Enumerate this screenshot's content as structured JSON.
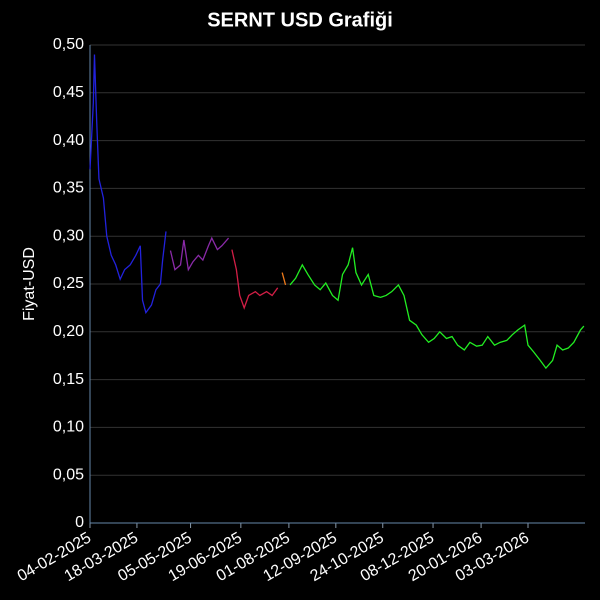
{
  "chart_data": {
    "type": "line",
    "title": "SERNT USD Grafiği",
    "ylabel": "Fiyat-USD",
    "xlim": [
      "04-02-2025",
      "23-04-2026"
    ],
    "xticks": [
      "04-02-2025",
      "18-03-2025",
      "05-05-2025",
      "19-06-2025",
      "01-08-2025",
      "12-09-2025",
      "24-10-2025",
      "08-12-2025",
      "20-01-2026",
      "03-03-2026"
    ],
    "ylim": [
      0,
      0.5
    ],
    "yticks": [
      0,
      {
        "value": 0.05,
        "label": "0,05"
      },
      {
        "value": 0.1,
        "label": "0,10"
      },
      {
        "value": 0.15,
        "label": "0,15"
      },
      {
        "value": 0.2,
        "label": "0,20"
      },
      {
        "value": 0.25,
        "label": "0,25"
      },
      {
        "value": 0.3,
        "label": "0,30"
      },
      {
        "value": 0.35,
        "label": "0,35"
      },
      {
        "value": 0.4,
        "label": "0,40"
      },
      {
        "value": 0.45,
        "label": "0,45"
      },
      {
        "value": 0.5,
        "label": "0,50"
      }
    ],
    "grid": true,
    "series": [
      {
        "color": "#2222dd",
        "x": [
          "04-02-2025",
          "07-02-2025",
          "08-02-2025",
          "10-02-2025",
          "12-02-2025",
          "16-02-2025",
          "19-02-2025",
          "23-02-2025",
          "27-02-2025",
          "03-03-2025",
          "07-03-2025",
          "12-03-2025",
          "17-03-2025",
          "21-03-2025",
          "23-03-2025",
          "26-03-2025",
          "31-03-2025",
          "04-04-2025",
          "08-04-2025",
          "10-04-2025",
          "13-04-2025"
        ],
        "values": [
          0.37,
          0.44,
          0.49,
          0.42,
          0.36,
          0.34,
          0.3,
          0.28,
          0.27,
          0.255,
          0.265,
          0.27,
          0.28,
          0.29,
          0.233,
          0.22,
          0.228,
          0.244,
          0.25,
          0.275,
          0.305
        ]
      },
      {
        "color": "#8a2aa8",
        "x": [
          "17-04-2025",
          "21-04-2025",
          "26-04-2025",
          "29-04-2025",
          "03-05-2025",
          "07-05-2025",
          "12-05-2025",
          "16-05-2025",
          "21-05-2025",
          "24-05-2025",
          "29-05-2025",
          "02-06-2025",
          "08-06-2025"
        ],
        "values": [
          0.285,
          0.265,
          0.27,
          0.296,
          0.265,
          0.273,
          0.28,
          0.275,
          0.29,
          0.298,
          0.286,
          0.29,
          0.298
        ]
      },
      {
        "color": "#d21e46",
        "x": [
          "11-06-2025",
          "15-06-2025",
          "18-06-2025",
          "22-06-2025",
          "26-06-2025",
          "02-07-2025",
          "06-07-2025",
          "12-07-2025",
          "17-07-2025",
          "22-07-2025"
        ],
        "values": [
          0.286,
          0.265,
          0.238,
          0.225,
          0.238,
          0.242,
          0.238,
          0.242,
          0.238,
          0.246
        ]
      },
      {
        "color": "#ee7a1a",
        "x": [
          "26-07-2025",
          "29-07-2025"
        ],
        "values": [
          0.262,
          0.249
        ]
      },
      {
        "color": "#22ee22",
        "x": [
          "02-08-2025",
          "07-08-2025",
          "13-08-2025",
          "18-08-2025",
          "24-08-2025",
          "29-08-2025",
          "03-09-2025",
          "09-09-2025",
          "14-09-2025",
          "18-09-2025",
          "23-09-2025",
          "27-09-2025",
          "30-09-2025",
          "05-10-2025",
          "11-10-2025",
          "16-10-2025",
          "22-10-2025",
          "27-10-2025",
          "01-11-2025",
          "07-11-2025",
          "12-11-2025",
          "17-11-2025",
          "23-11-2025",
          "28-11-2025",
          "04-12-2025",
          "09-12-2025",
          "14-12-2025",
          "20-12-2025",
          "25-12-2025",
          "30-12-2025",
          "05-01-2026",
          "10-01-2026",
          "16-01-2026",
          "21-01-2026",
          "26-01-2026",
          "01-02-2026",
          "06-02-2026",
          "12-02-2026",
          "17-02-2026",
          "22-02-2026",
          "28-02-2026",
          "03-03-2026",
          "08-03-2026",
          "14-03-2026",
          "19-03-2026",
          "25-03-2026",
          "29-03-2026",
          "03-04-2026",
          "08-04-2026",
          "13-04-2026",
          "19-04-2026",
          "22-04-2026"
        ],
        "values": [
          0.249,
          0.256,
          0.27,
          0.26,
          0.249,
          0.244,
          0.251,
          0.238,
          0.233,
          0.26,
          0.27,
          0.288,
          0.262,
          0.249,
          0.26,
          0.238,
          0.236,
          0.238,
          0.242,
          0.249,
          0.238,
          0.212,
          0.207,
          0.197,
          0.189,
          0.193,
          0.2,
          0.193,
          0.195,
          0.186,
          0.181,
          0.189,
          0.185,
          0.186,
          0.195,
          0.186,
          0.189,
          0.191,
          0.197,
          0.202,
          0.207,
          0.186,
          0.179,
          0.17,
          0.162,
          0.17,
          0.186,
          0.181,
          0.183,
          0.189,
          0.202,
          0.206
        ]
      }
    ]
  }
}
